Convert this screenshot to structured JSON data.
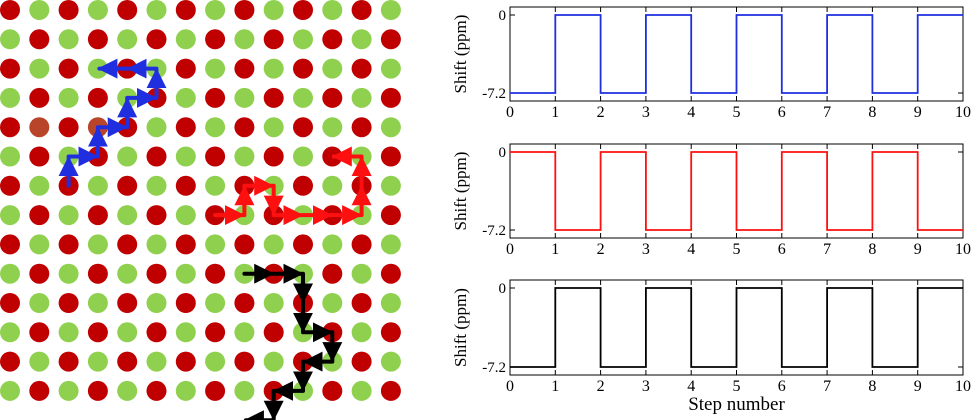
{
  "lattice": {
    "rows": 14,
    "cols": 14,
    "color_a": "#8fd14f",
    "color_b": "#c00000",
    "highlight_color": "#b8442a",
    "highlight_sites": [
      [
        4,
        1
      ],
      [
        4,
        3
      ]
    ],
    "walks": [
      {
        "color": "#1f2fe0",
        "sites": [
          [
            6,
            2
          ],
          [
            5,
            2
          ],
          [
            5,
            3
          ],
          [
            4,
            3
          ],
          [
            4,
            4
          ],
          [
            3,
            4
          ],
          [
            3,
            5
          ],
          [
            2,
            5
          ],
          [
            2,
            4
          ],
          [
            2,
            3
          ]
        ]
      },
      {
        "color": "#ff1010",
        "sites": [
          [
            7,
            7
          ],
          [
            7,
            8
          ],
          [
            6,
            8
          ],
          [
            6,
            9
          ],
          [
            7,
            9
          ],
          [
            7,
            10
          ],
          [
            7,
            11
          ],
          [
            7,
            12
          ],
          [
            6,
            12
          ],
          [
            5,
            12
          ],
          [
            5,
            11
          ]
        ]
      },
      {
        "color": "#000000",
        "sites": [
          [
            9,
            8
          ],
          [
            9,
            9
          ],
          [
            9,
            10
          ],
          [
            10,
            10
          ],
          [
            11,
            10
          ],
          [
            11,
            11
          ],
          [
            12,
            11
          ],
          [
            12,
            10
          ],
          [
            13,
            10
          ],
          [
            13,
            9
          ],
          [
            14,
            9
          ],
          [
            14,
            8
          ]
        ]
      }
    ]
  },
  "chart_data": [
    {
      "type": "line",
      "color": "#1f2fe0",
      "ylabel": "Shift (ppm)",
      "xlabel": "",
      "xlim": [
        0,
        10
      ],
      "ylim": [
        -7.2,
        0
      ],
      "x_ticks": [
        "0",
        "1",
        "2",
        "3",
        "4",
        "5",
        "6",
        "7",
        "8",
        "9",
        "10"
      ],
      "y_ticks": [
        "0",
        "-7.2"
      ],
      "x": [
        0,
        1,
        1,
        2,
        2,
        3,
        3,
        4,
        4,
        5,
        5,
        6,
        6,
        7,
        7,
        8,
        8,
        9,
        9,
        10
      ],
      "y": [
        -7.2,
        -7.2,
        0,
        0,
        -7.2,
        -7.2,
        0,
        0,
        -7.2,
        -7.2,
        0,
        0,
        -7.2,
        -7.2,
        0,
        0,
        -7.2,
        -7.2,
        0,
        0
      ]
    },
    {
      "type": "line",
      "color": "#ff1010",
      "ylabel": "Shift (ppm)",
      "xlabel": "",
      "xlim": [
        0,
        10
      ],
      "ylim": [
        -7.2,
        0
      ],
      "x_ticks": [
        "0",
        "1",
        "2",
        "3",
        "4",
        "5",
        "6",
        "7",
        "8",
        "9",
        "10"
      ],
      "y_ticks": [
        "0",
        "-7.2"
      ],
      "x": [
        0,
        1,
        1,
        2,
        2,
        3,
        3,
        4,
        4,
        5,
        5,
        6,
        6,
        7,
        7,
        8,
        8,
        9,
        9,
        10
      ],
      "y": [
        0,
        0,
        -7.2,
        -7.2,
        0,
        0,
        -7.2,
        -7.2,
        0,
        0,
        -7.2,
        -7.2,
        0,
        0,
        -7.2,
        -7.2,
        0,
        0,
        -7.2,
        -7.2
      ]
    },
    {
      "type": "line",
      "color": "#000000",
      "ylabel": "Shift (ppm)",
      "xlabel": "Step number",
      "xlim": [
        0,
        10
      ],
      "ylim": [
        -7.2,
        0
      ],
      "x_ticks": [
        "0",
        "1",
        "2",
        "3",
        "4",
        "5",
        "6",
        "7",
        "8",
        "9",
        "10"
      ],
      "y_ticks": [
        "0",
        "-7.2"
      ],
      "x": [
        0,
        1,
        1,
        2,
        2,
        3,
        3,
        4,
        4,
        5,
        5,
        6,
        6,
        7,
        7,
        8,
        8,
        9,
        9,
        10
      ],
      "y": [
        -7.2,
        -7.2,
        0,
        0,
        -7.2,
        -7.2,
        0,
        0,
        -7.2,
        -7.2,
        0,
        0,
        -7.2,
        -7.2,
        0,
        0,
        -7.2,
        -7.2,
        0,
        0
      ]
    }
  ]
}
